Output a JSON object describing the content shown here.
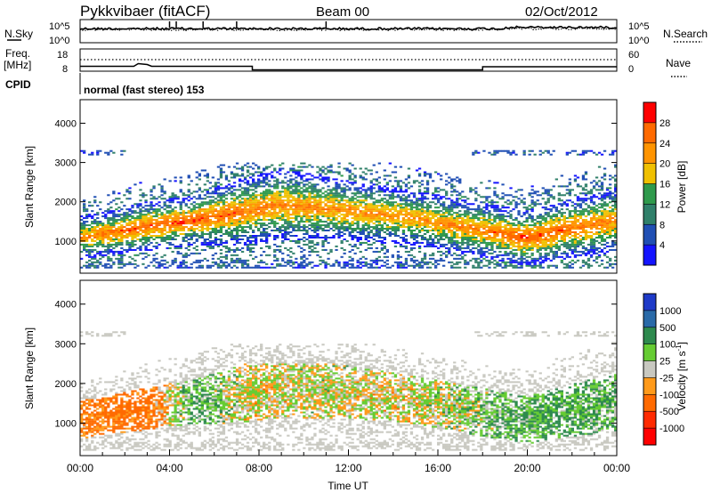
{
  "header": {
    "station": "Pykkvibaer (fitACF)",
    "beam": "Beam 00",
    "date": "02/Oct/2012"
  },
  "panel_labels": {
    "nsky": "N.Sky",
    "nsearch": "N.Search",
    "freq_line1": "Freq.",
    "freq_line2": "[MHz]",
    "nave": "Nave",
    "cpid": "CPID",
    "mode": "normal (fast stereo) 153"
  },
  "small_axes": {
    "noise_left_ticks": [
      "10^5",
      "10^0"
    ],
    "noise_right_ticks": [
      "10^5",
      "10^0"
    ],
    "freq_ticks": [
      "18",
      "8"
    ],
    "nave_ticks": [
      "60",
      "0"
    ]
  },
  "colorbars": {
    "power": {
      "label": "Power [dB]",
      "ticks": [
        "28",
        "24",
        "20",
        "16",
        "12",
        "8",
        "4"
      ],
      "colors": [
        "#ff0000",
        "#ff6a00",
        "#ff9400",
        "#f0c000",
        "#2f9a4c",
        "#30806a",
        "#204fb4",
        "#1414ff"
      ]
    },
    "velocity": {
      "label_main": "Velocity [m s",
      "label_sup": "-1",
      "label_close": "]",
      "ticks": [
        "1000",
        "500",
        "100",
        "25",
        "-25",
        "-100",
        "-500",
        "-1000"
      ],
      "colors": [
        "#1e3ac8",
        "#2a6aa8",
        "#2e8a4e",
        "#66cc33",
        "#c8c8c0",
        "#ff9a1a",
        "#ff6a00",
        "#ff2a00",
        "#ff0000"
      ]
    }
  },
  "chart_data": {
    "type": "heatmap",
    "xlabel": "Time UT",
    "ylabel": "Slant Range [km]",
    "x_ticks": [
      "00:00",
      "04:00",
      "08:00",
      "12:00",
      "16:00",
      "20:00",
      "00:00"
    ],
    "xlim_hours": [
      0,
      24
    ],
    "y_ticks": [
      1000,
      2000,
      3000,
      4000
    ],
    "ylim_km": [
      180,
      4600
    ],
    "frequency_mhz": [
      {
        "t": 0,
        "f": 10.2
      },
      {
        "t": 2.4,
        "f": 10.2
      },
      {
        "t": 2.6,
        "f": 11.4
      },
      {
        "t": 3.0,
        "f": 11.0
      },
      {
        "t": 3.2,
        "f": 10.2
      },
      {
        "t": 7.7,
        "f": 10.2
      },
      {
        "t": 7.7,
        "f": 8.6
      },
      {
        "t": 18.0,
        "f": 8.6
      },
      {
        "t": 18.0,
        "f": 10.0
      },
      {
        "t": 24,
        "f": 10.0
      }
    ],
    "power_db_bands": [
      {
        "t": 0.0,
        "center_km": 1050,
        "width_km": 400,
        "peak_db": 24
      },
      {
        "t": 1.5,
        "center_km": 1200,
        "width_km": 400,
        "peak_db": 26
      },
      {
        "t": 3.0,
        "center_km": 1350,
        "width_km": 450,
        "peak_db": 27
      },
      {
        "t": 5.0,
        "center_km": 1500,
        "width_km": 450,
        "peak_db": 28
      },
      {
        "t": 7.0,
        "center_km": 1700,
        "width_km": 600,
        "peak_db": 26
      },
      {
        "t": 9.0,
        "center_km": 1900,
        "width_km": 650,
        "peak_db": 24
      },
      {
        "t": 12.0,
        "center_km": 1750,
        "width_km": 550,
        "peak_db": 24
      },
      {
        "t": 15.0,
        "center_km": 1550,
        "width_km": 500,
        "peak_db": 23
      },
      {
        "t": 18.0,
        "center_km": 1250,
        "width_km": 500,
        "peak_db": 25
      },
      {
        "t": 20.0,
        "center_km": 1050,
        "width_km": 500,
        "peak_db": 28
      },
      {
        "t": 22.0,
        "center_km": 1300,
        "width_km": 550,
        "peak_db": 26
      },
      {
        "t": 24.0,
        "center_km": 1500,
        "width_km": 600,
        "peak_db": 24
      }
    ],
    "velocity_ms_bands": [
      {
        "t": 0.0,
        "center_km": 900,
        "width_km": 350,
        "velocity": -120
      },
      {
        "t": 3.0,
        "center_km": 1400,
        "width_km": 450,
        "velocity": -150
      },
      {
        "t": 5.0,
        "center_km": 1500,
        "width_km": 450,
        "velocity": 100
      },
      {
        "t": 7.5,
        "center_km": 1700,
        "width_km": 600,
        "velocity": -10
      },
      {
        "t": 11.0,
        "center_km": 1700,
        "width_km": 600,
        "velocity": 5
      },
      {
        "t": 15.0,
        "center_km": 1500,
        "width_km": 500,
        "velocity": -10
      },
      {
        "t": 18.0,
        "center_km": 1200,
        "width_km": 500,
        "velocity": 60
      },
      {
        "t": 21.0,
        "center_km": 1000,
        "width_km": 500,
        "velocity": 120
      },
      {
        "t": 24.0,
        "center_km": 1300,
        "width_km": 550,
        "velocity": 80
      }
    ]
  }
}
